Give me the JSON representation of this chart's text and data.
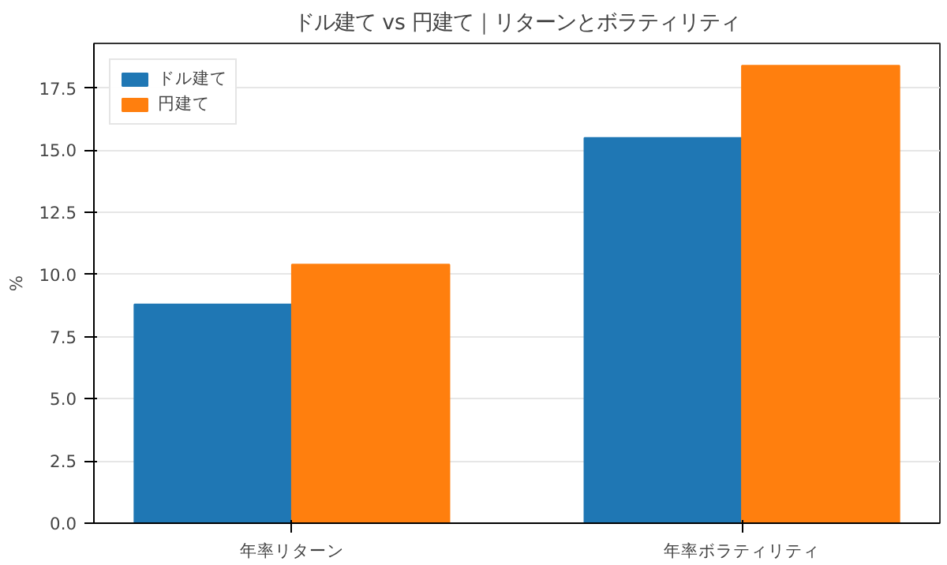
{
  "chart_data": {
    "type": "bar",
    "title": "ドル建て vs 円建て｜リターンとボラティリティ",
    "ylabel": "%",
    "categories": [
      "年率リターン",
      "年率ボラティリティ"
    ],
    "series": [
      {
        "name": "ドル建て",
        "color": "#1f77b4",
        "values": [
          8.8,
          15.5
        ]
      },
      {
        "name": "円建て",
        "color": "#ff7f0e",
        "values": [
          10.4,
          18.4
        ]
      }
    ],
    "ylim": [
      0,
      19.3
    ],
    "yticks": [
      {
        "value": 0,
        "label": "0.0"
      },
      {
        "value": 2.5,
        "label": "2.5"
      },
      {
        "value": 5,
        "label": "5.0"
      },
      {
        "value": 7.5,
        "label": "7.5"
      },
      {
        "value": 10,
        "label": "10.0"
      },
      {
        "value": 12.5,
        "label": "12.5"
      },
      {
        "value": 15,
        "label": "15.0"
      },
      {
        "value": 17.5,
        "label": "17.5"
      }
    ],
    "grid": "y",
    "legend": "top left"
  }
}
